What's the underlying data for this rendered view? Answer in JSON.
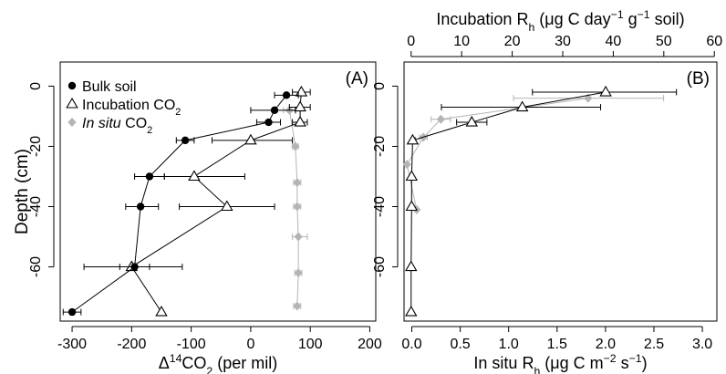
{
  "colors": {
    "bulk": "#000000",
    "incubation": "#000000",
    "insitu": "#b4b4b4",
    "axis": "#000000"
  },
  "chart_data": [
    {
      "type": "scatter",
      "panel_label": "(A)",
      "xlabel_pre": "Δ",
      "xlabel_sup": "14",
      "xlabel_main": "CO",
      "xlabel_sub": "2",
      "xlabel_post": " (per mil)",
      "ylabel": "Depth (cm)",
      "xlim": [
        -320,
        210
      ],
      "ylim": [
        -78,
        8
      ],
      "xticks": [
        -300,
        -200,
        -100,
        0,
        100,
        200
      ],
      "yticks": [
        0,
        -20,
        -40,
        -60
      ],
      "legend_position": "top-left",
      "series": [
        {
          "name": "Bulk soil",
          "name_sub": "",
          "italic": false,
          "marker": "circle",
          "connected": true,
          "points": [
            {
              "x": 60,
              "y": -3,
              "xmin": 40,
              "xmax": 80
            },
            {
              "x": 40,
              "y": -8,
              "xmin": 0,
              "xmax": 75
            },
            {
              "x": 30,
              "y": -12,
              "xmin": 10,
              "xmax": 50
            },
            {
              "x": -110,
              "y": -18,
              "xmin": -125,
              "xmax": -95
            },
            {
              "x": -170,
              "y": -30,
              "xmin": -195,
              "xmax": -145
            },
            {
              "x": -185,
              "y": -40,
              "xmin": -210,
              "xmax": -155
            },
            {
              "x": -195,
              "y": -60,
              "xmin": -220,
              "xmax": -170
            },
            {
              "x": -300,
              "y": -75,
              "xmin": -315,
              "xmax": -285
            }
          ]
        },
        {
          "name": "Incubation CO",
          "name_sub": "2",
          "italic": false,
          "marker": "triangle",
          "connected": true,
          "points": [
            {
              "x": 85,
              "y": -2,
              "xmin": 70,
              "xmax": 100
            },
            {
              "x": 83,
              "y": -7,
              "xmin": 65,
              "xmax": 100
            },
            {
              "x": 83,
              "y": -12,
              "xmin": 70,
              "xmax": 95
            },
            {
              "x": 0,
              "y": -18,
              "xmin": -65,
              "xmax": 70
            },
            {
              "x": -95,
              "y": -30,
              "xmin": -145,
              "xmax": -10
            },
            {
              "x": -40,
              "y": -40,
              "xmin": -120,
              "xmax": 40
            },
            {
              "x": -200,
              "y": -60,
              "xmin": -280,
              "xmax": -115
            },
            {
              "x": -150,
              "y": -75,
              "xmin": -150,
              "xmax": -150
            }
          ]
        },
        {
          "name": "In situ",
          "name_sub": "2",
          "name_tail": "CO",
          "italic": true,
          "marker": "diamond",
          "connected": true,
          "points": [
            {
              "x": 65,
              "y": -8,
              "xmin": 55,
              "xmax": 75
            },
            {
              "x": 75,
              "y": -20,
              "xmin": 70,
              "xmax": 80
            },
            {
              "x": 78,
              "y": -32,
              "xmin": 72,
              "xmax": 84
            },
            {
              "x": 78,
              "y": -40,
              "xmin": 72,
              "xmax": 84
            },
            {
              "x": 80,
              "y": -50,
              "xmin": 70,
              "xmax": 95
            },
            {
              "x": 80,
              "y": -62,
              "xmin": 74,
              "xmax": 86
            },
            {
              "x": 78,
              "y": -73,
              "xmin": 72,
              "xmax": 84
            }
          ]
        }
      ]
    },
    {
      "type": "scatter",
      "panel_label": "(B)",
      "bottom_xlabel_main": "In situ R",
      "bottom_xlabel_sub": "h",
      "bottom_xlabel_rest": " (μg C m",
      "bottom_xlabel_sup1": "−2",
      "bottom_xlabel_mid": " s",
      "bottom_xlabel_sup2": "−1",
      "bottom_xlabel_end": ")",
      "top_xlabel_main": "Incubation R",
      "top_xlabel_sub": "h",
      "top_xlabel_rest": " (μg C day",
      "top_xlabel_sup1": "−1",
      "top_xlabel_mid": " g",
      "top_xlabel_sup2": "−1",
      "top_xlabel_end": " soil)",
      "xlim_bottom": [
        -0.08,
        3.15
      ],
      "xlim_top": [
        -1.4,
        60.5
      ],
      "ylim": [
        -78,
        8
      ],
      "xticks_bottom": [
        "0.0",
        "0.5",
        "1.0",
        "1.5",
        "2.0",
        "2.5",
        "3.0"
      ],
      "xticks_top": [
        0,
        10,
        20,
        30,
        40,
        50,
        60
      ],
      "yticks": [
        0,
        -20,
        -40,
        -60
      ],
      "series": [
        {
          "name": "Incubation",
          "axis": "top",
          "marker": "triangle",
          "connected": true,
          "points": [
            {
              "x": 38.5,
              "y": -2,
              "xmin": 24,
              "xmax": 52.5
            },
            {
              "x": 22,
              "y": -7,
              "xmin": 6,
              "xmax": 37.5
            },
            {
              "x": 12,
              "y": -12,
              "xmin": 9,
              "xmax": 15
            },
            {
              "x": 0.3,
              "y": -18,
              "xmin": 0,
              "xmax": 0.8
            },
            {
              "x": 0.1,
              "y": -30,
              "xmin": 0,
              "xmax": 0.3
            },
            {
              "x": 0.1,
              "y": -40,
              "xmin": 0,
              "xmax": 0.3
            },
            {
              "x": 0,
              "y": -60,
              "xmin": 0,
              "xmax": 0
            },
            {
              "x": 0,
              "y": -75,
              "xmin": 0,
              "xmax": 0
            }
          ]
        },
        {
          "name": "In situ",
          "axis": "bottom",
          "marker": "diamond",
          "connected": true,
          "points": [
            {
              "x": 1.82,
              "y": -4,
              "xmin": 1.05,
              "xmax": 2.6
            },
            {
              "x": 0.3,
              "y": -11,
              "xmin": 0.2,
              "xmax": 0.4
            },
            {
              "x": 0.12,
              "y": -17,
              "xmin": 0.08,
              "xmax": 0.16
            },
            {
              "x": -0.05,
              "y": -26,
              "xmin": -0.06,
              "xmax": -0.04
            },
            {
              "x": 0.05,
              "y": -41,
              "xmin": 0.04,
              "xmax": 0.06
            }
          ]
        }
      ]
    }
  ]
}
